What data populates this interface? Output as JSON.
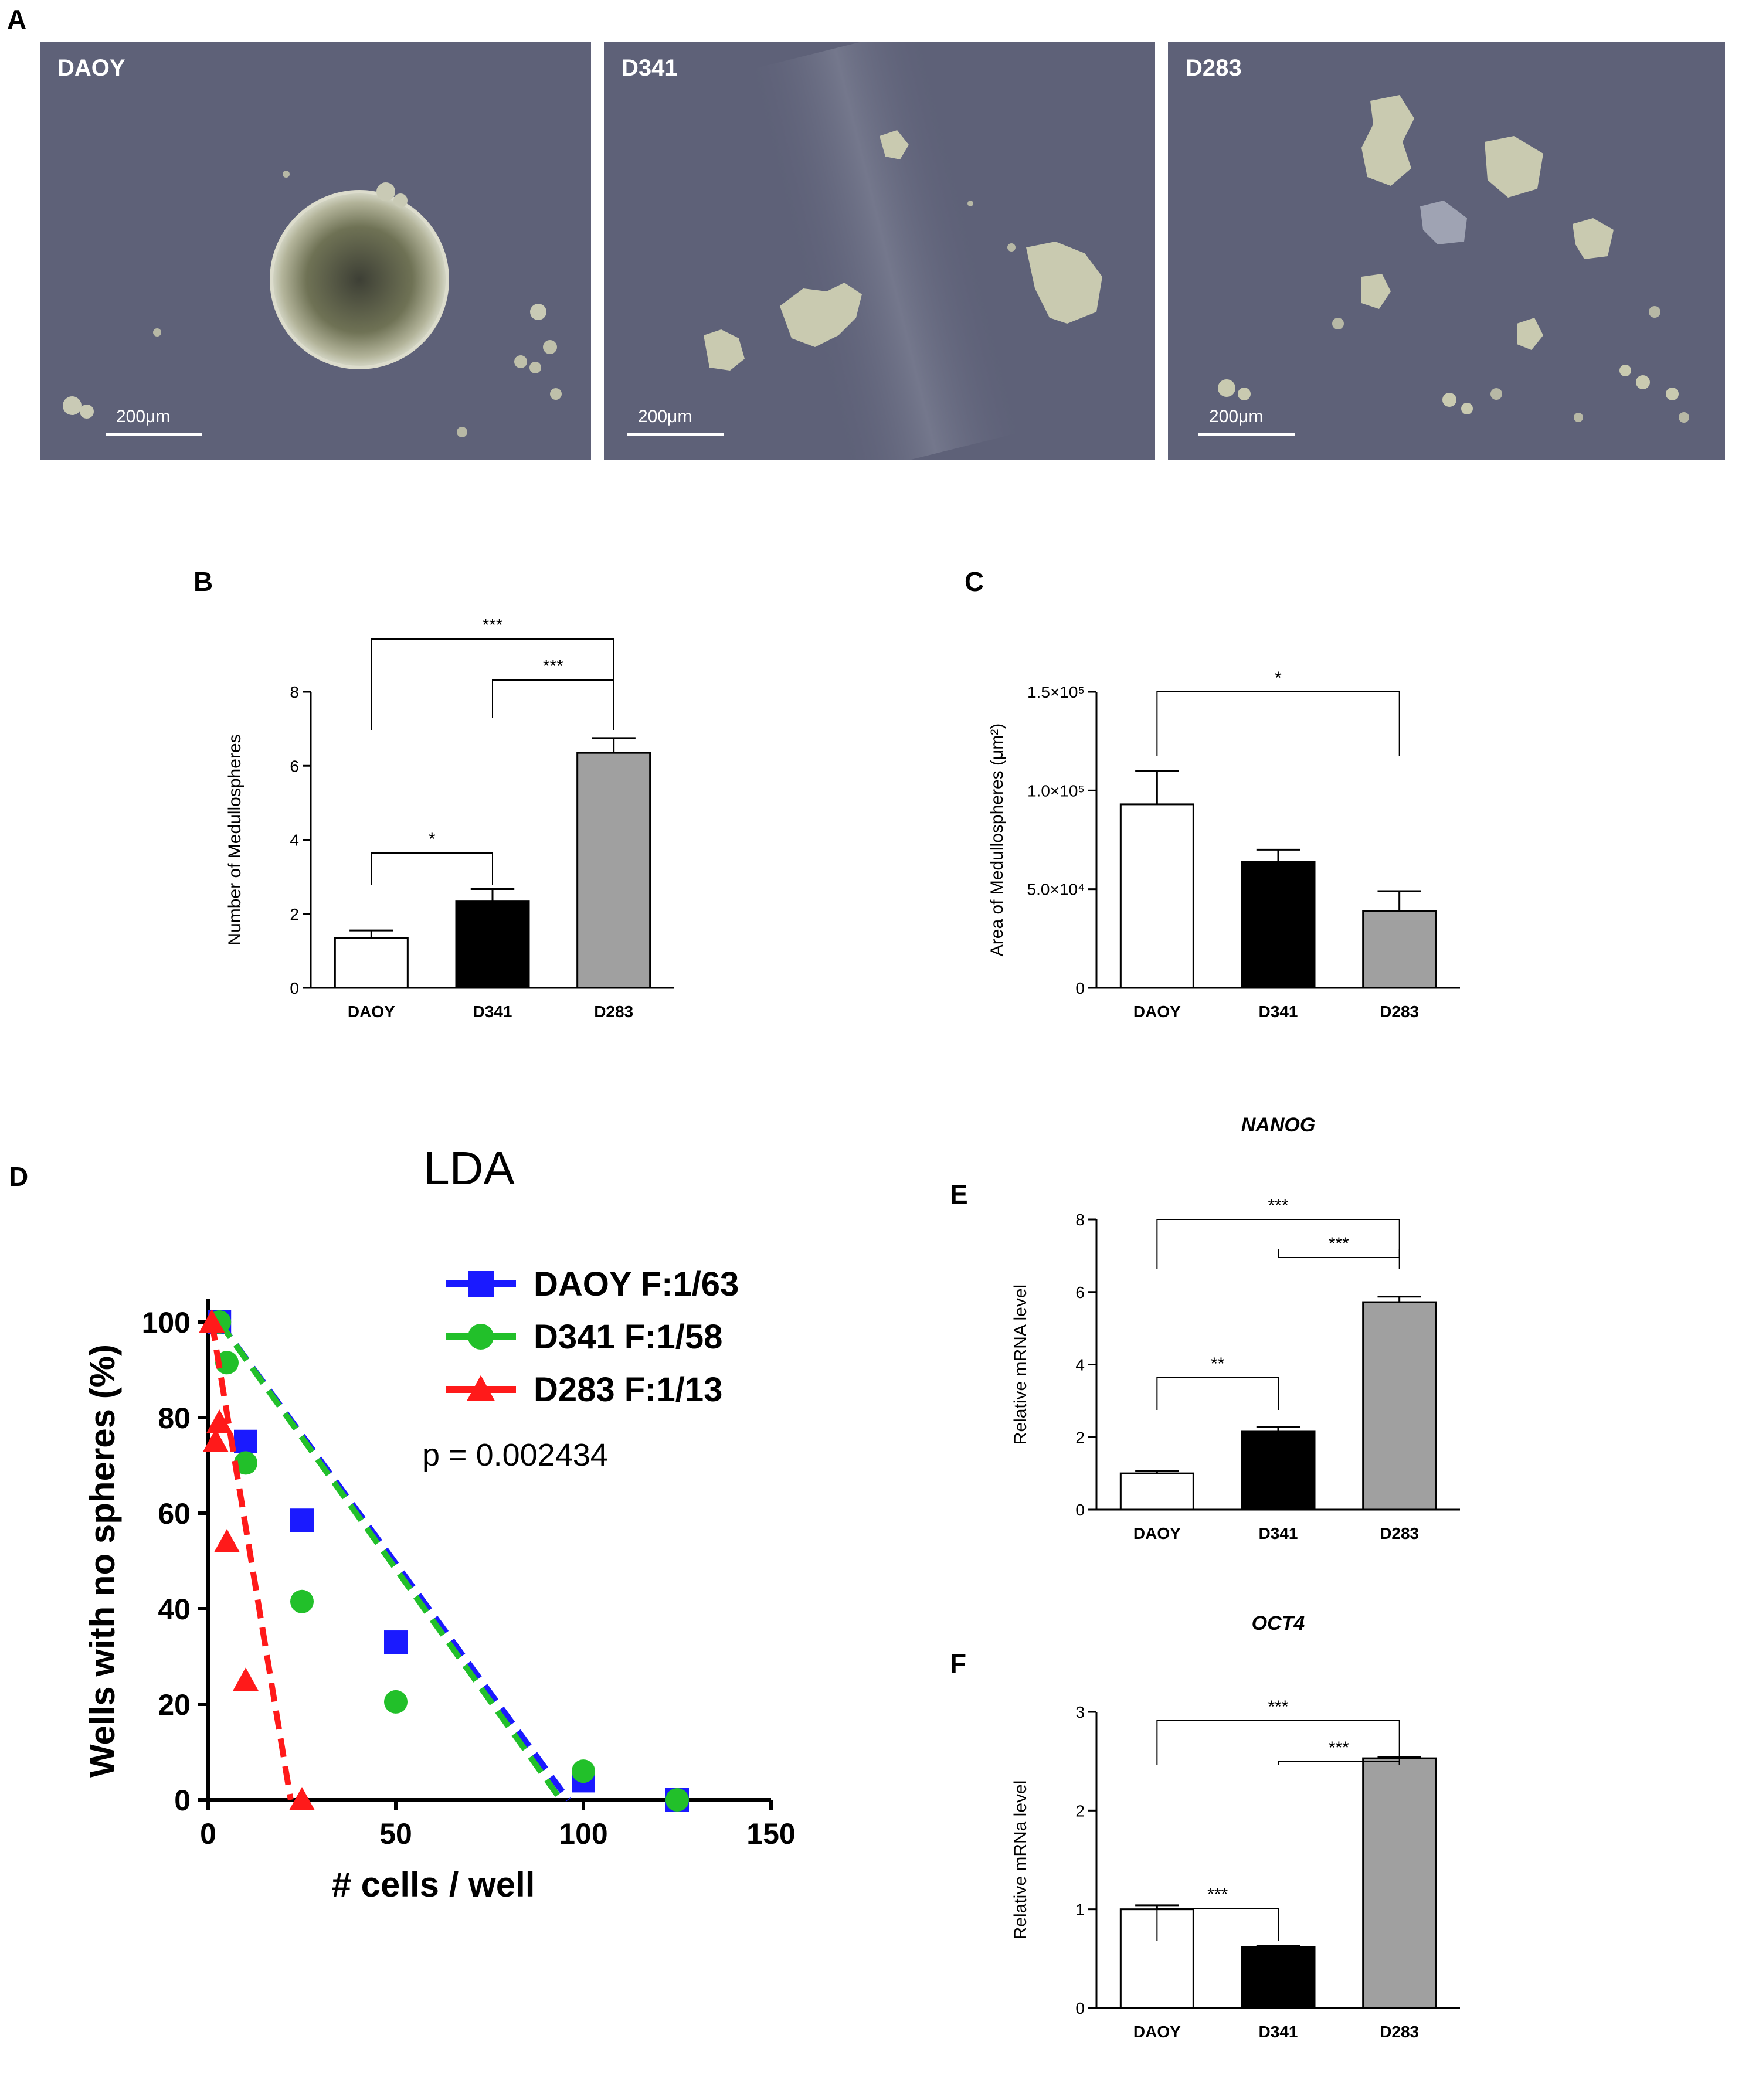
{
  "panel_letters": {
    "a": "A",
    "b": "B",
    "c": "C",
    "d": "D",
    "e": "E",
    "f": "F"
  },
  "photos": [
    {
      "label": "DAOY",
      "scale": "200μm"
    },
    {
      "label": "D341",
      "scale": "200μm"
    },
    {
      "label": "D283",
      "scale": "200μm"
    }
  ],
  "colors": {
    "photo_bg": "#5e6178",
    "daoy_bar": "#ffffff",
    "d341_bar": "#000000",
    "d283_bar": "#a0a0a0",
    "lda_blue": "#1a1aff",
    "lda_green": "#22c02a",
    "lda_red": "#ff1a1a"
  },
  "chart_data": [
    {
      "id": "B",
      "type": "bar",
      "categories": [
        "DAOY",
        "D341",
        "D283"
      ],
      "values": [
        1.35,
        2.35,
        6.35
      ],
      "errors": [
        0.2,
        0.32,
        0.4
      ],
      "ylabel": "Number of Medullospheres",
      "ylim": [
        0,
        8
      ],
      "yticks": [
        "0",
        "2",
        "4",
        "6",
        "8"
      ],
      "significance": [
        {
          "from": 0,
          "to": 2,
          "label": "***"
        },
        {
          "from": 1,
          "to": 2,
          "label": "***"
        },
        {
          "from": 0,
          "to": 1,
          "label": "*"
        }
      ]
    },
    {
      "id": "C",
      "type": "bar",
      "categories": [
        "DAOY",
        "D341",
        "D283"
      ],
      "values": [
        93000,
        64000,
        39000
      ],
      "errors": [
        17000,
        6000,
        10000
      ],
      "ylabel": "Area of Medullospheres (μm²)",
      "ylim": [
        0,
        150000
      ],
      "yticks": [
        "0",
        "5.0×10⁴",
        "1.0×10⁵",
        "1.5×10⁵"
      ],
      "significance": [
        {
          "from": 0,
          "to": 2,
          "label": "*"
        }
      ]
    },
    {
      "id": "D",
      "type": "scatter",
      "title": "LDA",
      "xlabel": "# cells / well",
      "ylabel": "Wells with no spheres (%)",
      "xlim": [
        0,
        150
      ],
      "ylim": [
        0,
        100
      ],
      "xticks": [
        "0",
        "50",
        "100",
        "150"
      ],
      "yticks": [
        "0",
        "20",
        "40",
        "60",
        "80",
        "100"
      ],
      "annotation": "p = 0.002434",
      "legend_position": "top-right",
      "series": [
        {
          "name": "DAOY F:1/63",
          "marker": "square",
          "points": [
            [
              3,
              100
            ],
            [
              10,
              75
            ],
            [
              25,
              58.5
            ],
            [
              50,
              33
            ],
            [
              100,
              4
            ],
            [
              125,
              0
            ]
          ],
          "fit": [
            [
              3,
              100
            ],
            [
              96,
              0
            ]
          ]
        },
        {
          "name": "D341 F:1/58",
          "marker": "circle",
          "points": [
            [
              3,
              100
            ],
            [
              5,
              91.5
            ],
            [
              10,
              70.5
            ],
            [
              25,
              41.5
            ],
            [
              50,
              20.5
            ],
            [
              100,
              6
            ],
            [
              125,
              0
            ]
          ],
          "fit": [
            [
              3,
              100
            ],
            [
              94,
              0
            ]
          ]
        },
        {
          "name": "D283 F:1/13",
          "marker": "triangle",
          "points": [
            [
              1,
              100
            ],
            [
              2,
              75
            ],
            [
              3,
              79
            ],
            [
              5,
              54
            ],
            [
              10,
              25
            ],
            [
              25,
              0
            ]
          ],
          "fit": [
            [
              1,
              100
            ],
            [
              22,
              0
            ]
          ]
        }
      ]
    },
    {
      "id": "E",
      "type": "bar",
      "title": "NANOG",
      "categories": [
        "DAOY",
        "D341",
        "D283"
      ],
      "values": [
        1.0,
        2.15,
        5.72
      ],
      "errors": [
        0.06,
        0.12,
        0.15
      ],
      "ylabel": "Relative mRNA level",
      "ylim": [
        0,
        8
      ],
      "yticks": [
        "0",
        "2",
        "4",
        "6",
        "8"
      ],
      "significance": [
        {
          "from": 0,
          "to": 2,
          "label": "***"
        },
        {
          "from": 1,
          "to": 2,
          "label": "***"
        },
        {
          "from": 0,
          "to": 1,
          "label": "**"
        }
      ]
    },
    {
      "id": "F",
      "type": "bar",
      "title": "OCT4",
      "categories": [
        "DAOY",
        "D341",
        "D283"
      ],
      "values": [
        1.0,
        0.62,
        2.53
      ],
      "errors": [
        0.04,
        0.01,
        0.01
      ],
      "ylabel": "Relative mRNa level",
      "ylim": [
        0,
        3
      ],
      "yticks": [
        "0",
        "1",
        "2",
        "3"
      ],
      "significance": [
        {
          "from": 0,
          "to": 2,
          "label": "***"
        },
        {
          "from": 1,
          "to": 2,
          "label": "***"
        },
        {
          "from": 0,
          "to": 1,
          "label": "***"
        }
      ]
    }
  ]
}
